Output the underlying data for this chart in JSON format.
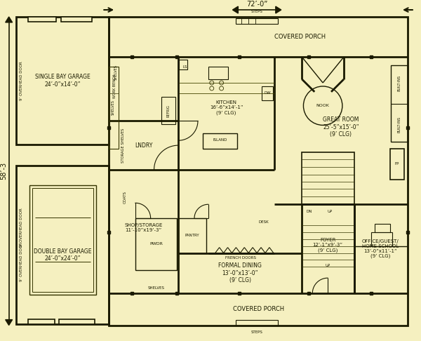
{
  "bg_color": "#f5f0c0",
  "line_color": "#1a1a00",
  "wall_lw": 2.0,
  "thin_lw": 1.0,
  "dim_width_label": "72’-0”",
  "dim_height_label": "58’-3",
  "sg_label": "SINGLE BAY GARAGE\n24’-0”x14’-0”",
  "dg_label": "DOUBLE BAY GARAGE\n24’-0”x24’-0”",
  "shop_label": "SHOP/STORAGE\n11’-10”x19’-3”",
  "lndry_label": "LNDRY",
  "kitchen_label": "KITCHEN\n16’-6”x14’-1”\n(9’ CLG)",
  "great_room_label": "GREAT ROOM\n25’-5”x15’-0”\n(9’ CLG)",
  "nook_label": "NOOK",
  "dining_label": "FORMAL DINING\n13’-0”x13’-0”\n(9’ CLG)",
  "foyer_label": "FOYER\n12’-1”x9’-3”\n(9’ CLG)",
  "office_label": "OFFICE/GUEST/\nHOME SCHOOL\n13’-0”x11’-1”\n(9’ CLG)",
  "porch_label": "COVERED PORCH",
  "steps_label": "STEPS",
  "island_label": "ISLAND",
  "pwdr_label": "PWDR",
  "pantry_label": "PANTRY",
  "french_doors_label": "FRENCH DOORS",
  "shelves_label": "SHELVES",
  "coats_label": "COATS",
  "desk_label": "DESK",
  "storage_shelves_label": "STORAGE SHELVES",
  "shelves2_label": "SHELVES",
  "work_bench_label": "WORK BENCH",
  "dw_label": "DW",
  "up_label": "UP",
  "dn_label": "DN",
  "builtins_label": "BUILT-INS",
  "overhead_door_label": "9’ OVERHEAD DOOR",
  "ls_label": "LS",
  "refrig_label": "REFRIG"
}
